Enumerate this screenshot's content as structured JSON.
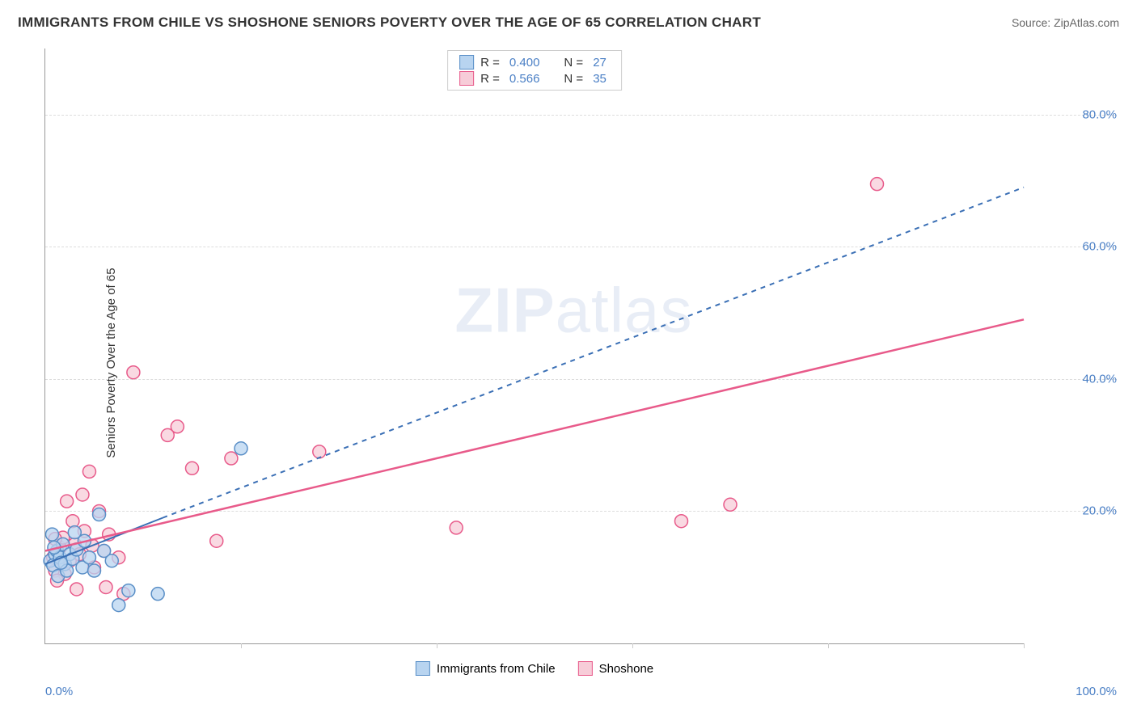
{
  "title": "IMMIGRANTS FROM CHILE VS SHOSHONE SENIORS POVERTY OVER THE AGE OF 65 CORRELATION CHART",
  "source": "Source: ZipAtlas.com",
  "watermark_a": "ZIP",
  "watermark_b": "atlas",
  "chart": {
    "type": "scatter",
    "y_axis_label": "Seniors Poverty Over the Age of 65",
    "xlim": [
      0,
      100
    ],
    "ylim": [
      0,
      90
    ],
    "x_tick_labels": {
      "min": "0.0%",
      "max": "100.0%"
    },
    "y_ticks": [
      20,
      40,
      60,
      80
    ],
    "y_tick_labels": [
      "20.0%",
      "40.0%",
      "60.0%",
      "80.0%"
    ],
    "x_minor_ticks": [
      20,
      40,
      60,
      80,
      100
    ],
    "background_color": "#ffffff",
    "grid_color": "#dddddd",
    "axis_color": "#999999",
    "series": [
      {
        "name": "Immigrants from Chile",
        "label": "Immigrants from Chile",
        "R": "0.400",
        "N": "27",
        "marker_fill": "#b8d4f0",
        "marker_stroke": "#5a8fc7",
        "marker_radius": 8,
        "marker_opacity": 0.75,
        "line_color": "#3a6fb5",
        "line_width": 2,
        "line_dash": "none",
        "line_dash_ext": "6,6",
        "trend_solid": {
          "x1": 0,
          "y1": 12,
          "x2": 12,
          "y2": 19
        },
        "trend_dash": {
          "x1": 12,
          "y1": 19,
          "x2": 100,
          "y2": 69
        },
        "points": [
          [
            0.5,
            12.5
          ],
          [
            1.0,
            13.5
          ],
          [
            0.8,
            11.8
          ],
          [
            1.2,
            14.0
          ],
          [
            1.5,
            13.0
          ],
          [
            2.0,
            12.0
          ],
          [
            1.8,
            15.0
          ],
          [
            2.5,
            13.5
          ],
          [
            0.7,
            16.5
          ],
          [
            2.8,
            12.8
          ],
          [
            3.2,
            14.2
          ],
          [
            3.8,
            11.5
          ],
          [
            4.0,
            15.5
          ],
          [
            4.5,
            13.0
          ],
          [
            5.0,
            11.0
          ],
          [
            5.5,
            19.5
          ],
          [
            6.0,
            14.0
          ],
          [
            1.3,
            10.2
          ],
          [
            6.8,
            12.5
          ],
          [
            7.5,
            5.8
          ],
          [
            3.0,
            16.8
          ],
          [
            2.2,
            11.0
          ],
          [
            8.5,
            8.0
          ],
          [
            11.5,
            7.5
          ],
          [
            0.9,
            14.5
          ],
          [
            1.6,
            12.2
          ],
          [
            20.0,
            29.5
          ]
        ]
      },
      {
        "name": "Shoshone",
        "label": "Shoshone",
        "R": "0.566",
        "N": "35",
        "marker_fill": "#f7ccd8",
        "marker_stroke": "#e85a8a",
        "marker_radius": 8,
        "marker_opacity": 0.75,
        "line_color": "#e85a8a",
        "line_width": 2.5,
        "line_dash": "none",
        "trend_solid": {
          "x1": 0,
          "y1": 14,
          "x2": 100,
          "y2": 49
        },
        "points": [
          [
            0.8,
            13.0
          ],
          [
            1.0,
            11.0
          ],
          [
            1.5,
            14.5
          ],
          [
            2.0,
            10.5
          ],
          [
            1.8,
            16.0
          ],
          [
            2.5,
            12.5
          ],
          [
            3.0,
            15.0
          ],
          [
            2.2,
            21.5
          ],
          [
            3.5,
            13.5
          ],
          [
            4.0,
            17.0
          ],
          [
            3.8,
            22.5
          ],
          [
            5.0,
            11.5
          ],
          [
            4.5,
            26.0
          ],
          [
            6.0,
            14.0
          ],
          [
            5.5,
            20.0
          ],
          [
            8.0,
            7.5
          ],
          [
            6.5,
            16.5
          ],
          [
            9.0,
            41.0
          ],
          [
            7.5,
            13.0
          ],
          [
            1.2,
            9.5
          ],
          [
            12.5,
            31.5
          ],
          [
            13.5,
            32.8
          ],
          [
            15.0,
            26.5
          ],
          [
            17.5,
            15.5
          ],
          [
            19.0,
            28.0
          ],
          [
            28.0,
            29.0
          ],
          [
            42.0,
            17.5
          ],
          [
            3.2,
            8.2
          ],
          [
            65.0,
            18.5
          ],
          [
            70.0,
            21.0
          ],
          [
            85.0,
            69.5
          ],
          [
            4.8,
            14.8
          ],
          [
            2.8,
            18.5
          ],
          [
            1.0,
            15.8
          ],
          [
            6.2,
            8.5
          ]
        ]
      }
    ]
  },
  "legend_top": {
    "r_label": "R =",
    "n_label": "N ="
  },
  "colors": {
    "tick_label": "#4a7fc5",
    "text": "#333333"
  }
}
